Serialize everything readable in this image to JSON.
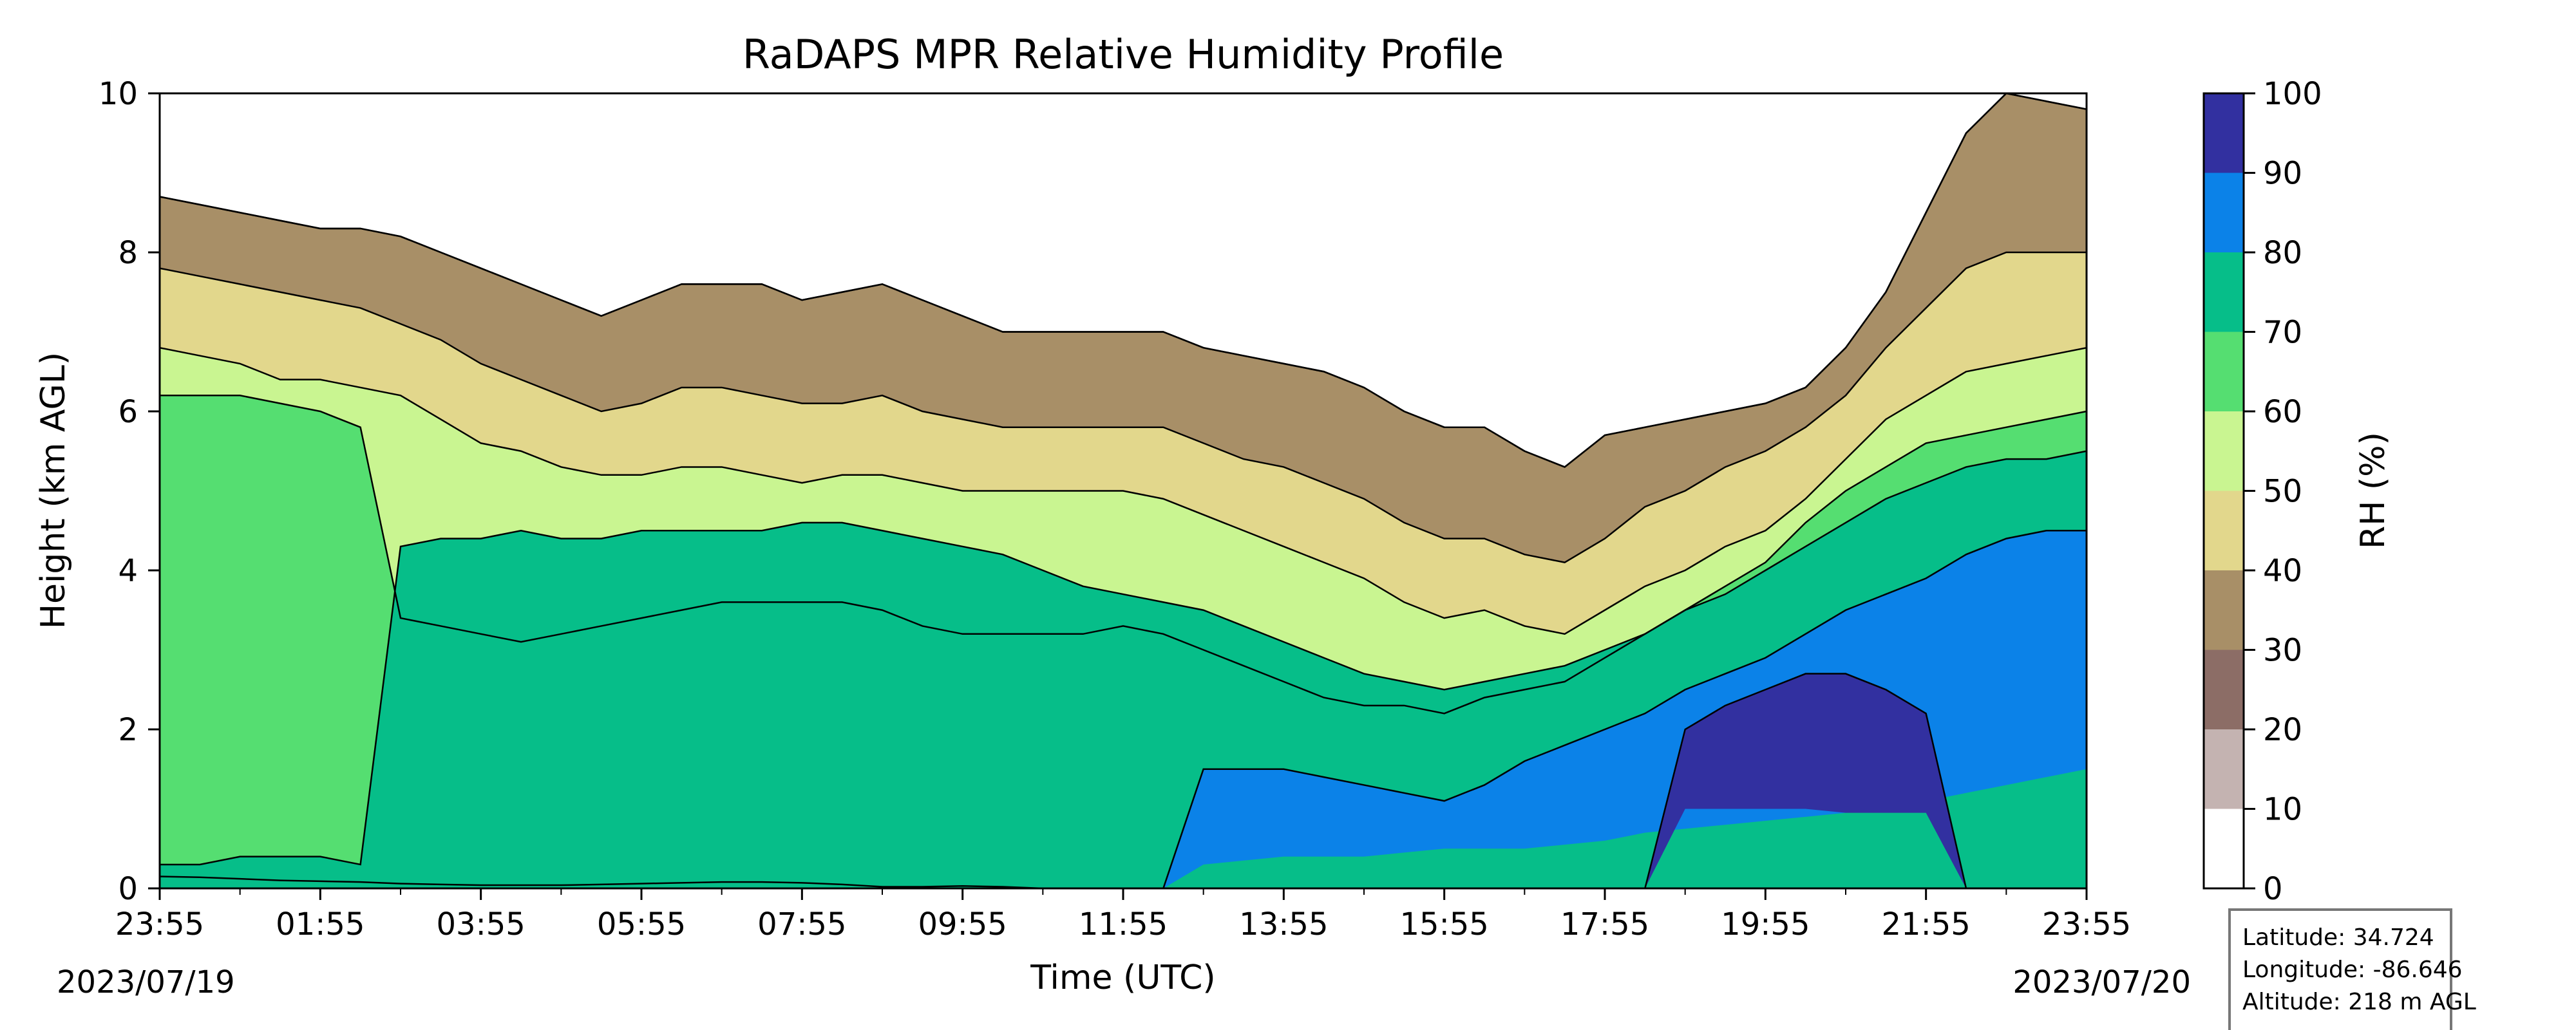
{
  "chart_data": {
    "type": "heatmap",
    "title": "RaDAPS MPR Relative Humidity Profile",
    "xlabel": "Time (UTC)",
    "ylabel": "Height (km AGL)",
    "x_ticks": [
      "23:55",
      "01:55",
      "03:55",
      "05:55",
      "07:55",
      "09:55",
      "11:55",
      "13:55",
      "15:55",
      "17:55",
      "19:55",
      "21:55",
      "23:55"
    ],
    "x_minor_ticks_per_interval": 1,
    "date_start": "2023/07/19",
    "date_end": "2023/07/20",
    "ylim": [
      0,
      10
    ],
    "y_ticks": [
      0,
      2,
      4,
      6,
      8,
      10
    ],
    "colorbar": {
      "label": "RH (%)",
      "levels": [
        0,
        10,
        20,
        30,
        40,
        50,
        60,
        70,
        80,
        90,
        100
      ],
      "colors": [
        "#ffffff",
        "#c4b3b1",
        "#8c6d66",
        "#a88f67",
        "#e2d78c",
        "#c9f591",
        "#55de71",
        "#06be89",
        "#0b82e8",
        "#3230a0"
      ]
    },
    "hours": [
      0,
      0.5,
      1,
      1.5,
      2,
      2.5,
      3,
      3.5,
      4,
      4.5,
      5,
      5.5,
      6,
      6.5,
      7,
      7.5,
      8,
      8.5,
      9,
      9.5,
      10,
      10.5,
      11,
      11.5,
      12,
      12.5,
      13,
      13.5,
      14,
      14.5,
      15,
      15.5,
      16,
      16.5,
      17,
      17.5,
      18,
      18.5,
      19,
      19.5,
      20,
      20.5,
      21,
      21.5,
      22,
      22.5,
      23,
      23.5,
      24
    ],
    "contour_heights_km": {
      "10": [
        0.15,
        0.14,
        0.12,
        0.1,
        0.09,
        0.08,
        0.06,
        0.05,
        0.04,
        0.04,
        0.04,
        0.05,
        0.06,
        0.07,
        0.08,
        0.08,
        0.07,
        0.05,
        0.02,
        0.02,
        0.03,
        0.02,
        0.0,
        0.0,
        0.0,
        0.0,
        0.0,
        0.0,
        0.0,
        0.0,
        0.0,
        0.0,
        0.0,
        0.0,
        0.0,
        0.0,
        0.0,
        0.0,
        0.0,
        0.0,
        0.0,
        0.0,
        0.0,
        0.0,
        0.0,
        0.0,
        0.0,
        0.0,
        0.0
      ],
      "20": [
        8.7,
        8.6,
        8.5,
        8.4,
        8.3,
        8.3,
        8.2,
        8.0,
        7.8,
        7.6,
        7.4,
        7.2,
        7.4,
        7.6,
        7.6,
        7.6,
        7.4,
        7.5,
        7.6,
        7.4,
        7.2,
        7.0,
        7.0,
        7.0,
        7.0,
        7.0,
        6.8,
        6.7,
        6.6,
        6.5,
        6.3,
        6.0,
        5.8,
        5.8,
        5.5,
        5.3,
        5.7,
        5.8,
        5.9,
        6.0,
        6.1,
        6.3,
        6.8,
        7.5,
        8.5,
        9.5,
        10.0,
        9.9,
        9.8
      ],
      "30": [
        8.7,
        8.6,
        8.5,
        8.4,
        8.3,
        8.3,
        8.2,
        8.0,
        7.8,
        7.6,
        7.4,
        7.2,
        7.4,
        7.6,
        7.6,
        7.6,
        7.4,
        7.5,
        7.6,
        7.4,
        7.2,
        7.0,
        7.0,
        7.0,
        7.0,
        7.0,
        6.8,
        6.7,
        6.6,
        6.5,
        6.3,
        6.0,
        5.8,
        5.8,
        5.5,
        5.3,
        5.7,
        5.8,
        5.9,
        6.0,
        6.1,
        6.3,
        6.8,
        7.5,
        8.5,
        9.5,
        10.0,
        9.9,
        9.8
      ],
      "40": [
        7.8,
        7.7,
        7.6,
        7.5,
        7.4,
        7.3,
        7.1,
        6.9,
        6.6,
        6.4,
        6.2,
        6.0,
        6.1,
        6.3,
        6.3,
        6.2,
        6.1,
        6.1,
        6.2,
        6.0,
        5.9,
        5.8,
        5.8,
        5.8,
        5.8,
        5.8,
        5.6,
        5.4,
        5.3,
        5.1,
        4.9,
        4.6,
        4.4,
        4.4,
        4.2,
        4.1,
        4.4,
        4.8,
        5.0,
        5.3,
        5.5,
        5.8,
        6.2,
        6.8,
        7.3,
        7.8,
        8.0,
        8.0,
        8.0
      ],
      "50": [
        6.8,
        6.7,
        6.6,
        6.4,
        6.4,
        6.3,
        6.2,
        5.9,
        5.6,
        5.5,
        5.3,
        5.2,
        5.2,
        5.3,
        5.3,
        5.2,
        5.1,
        5.2,
        5.2,
        5.1,
        5.0,
        5.0,
        5.0,
        5.0,
        5.0,
        4.9,
        4.7,
        4.5,
        4.3,
        4.1,
        3.9,
        3.6,
        3.4,
        3.5,
        3.3,
        3.2,
        3.5,
        3.8,
        4.0,
        4.3,
        4.5,
        4.9,
        5.4,
        5.9,
        6.2,
        6.5,
        6.6,
        6.7,
        6.8
      ],
      "60": [
        6.2,
        6.2,
        6.2,
        6.1,
        6.0,
        5.8,
        3.4,
        3.3,
        3.2,
        3.1,
        3.2,
        3.3,
        3.4,
        3.5,
        3.6,
        3.6,
        3.6,
        3.6,
        3.5,
        3.3,
        3.2,
        3.2,
        3.2,
        3.2,
        3.3,
        3.2,
        3.0,
        2.8,
        2.6,
        2.4,
        2.3,
        2.3,
        2.2,
        2.4,
        2.5,
        2.6,
        2.9,
        3.2,
        3.5,
        3.8,
        4.1,
        4.6,
        5.0,
        5.3,
        5.6,
        5.7,
        5.8,
        5.9,
        6.0
      ],
      "70": [
        0.3,
        0.3,
        0.4,
        0.4,
        0.4,
        0.3,
        4.3,
        4.4,
        4.4,
        4.5,
        4.4,
        4.4,
        4.5,
        4.5,
        4.5,
        4.5,
        4.6,
        4.6,
        4.5,
        4.4,
        4.3,
        4.2,
        4.0,
        3.8,
        3.7,
        3.6,
        3.5,
        3.3,
        3.1,
        2.9,
        2.7,
        2.6,
        2.5,
        2.6,
        2.7,
        2.8,
        3.0,
        3.2,
        3.5,
        3.7,
        4.0,
        4.3,
        4.6,
        4.9,
        5.1,
        5.3,
        5.4,
        5.4,
        5.5
      ],
      "80": [
        0.0,
        0.0,
        0.0,
        0.0,
        0.0,
        0.0,
        0.0,
        0.0,
        0.0,
        0.0,
        0.0,
        0.0,
        0.0,
        0.0,
        0.0,
        0.0,
        0.0,
        0.0,
        0.0,
        0.0,
        0.0,
        0.0,
        0.0,
        0.0,
        0.0,
        0.0,
        1.5,
        1.5,
        1.5,
        1.4,
        1.3,
        1.2,
        1.1,
        1.3,
        1.6,
        1.8,
        2.0,
        2.2,
        2.5,
        2.7,
        2.9,
        3.2,
        3.5,
        3.7,
        3.9,
        4.2,
        4.4,
        4.5,
        4.5
      ],
      "90": [
        0.0,
        0.0,
        0.0,
        0.0,
        0.0,
        0.0,
        0.0,
        0.0,
        0.0,
        0.0,
        0.0,
        0.0,
        0.0,
        0.0,
        0.0,
        0.0,
        0.0,
        0.0,
        0.0,
        0.0,
        0.0,
        0.0,
        0.0,
        0.0,
        0.0,
        0.0,
        0.0,
        0.0,
        0.0,
        0.0,
        0.0,
        0.0,
        0.0,
        0.0,
        0.0,
        0.0,
        0.0,
        0.0,
        2.0,
        2.3,
        2.5,
        2.7,
        2.7,
        2.5,
        2.2,
        0.0,
        0.0,
        0.0,
        0.0
      ]
    },
    "contour_floors_km": {
      "80": [
        0.0,
        0.0,
        0.0,
        0.0,
        0.0,
        0.0,
        0.0,
        0.0,
        0.0,
        0.0,
        0.0,
        0.0,
        0.0,
        0.0,
        0.0,
        0.0,
        0.0,
        0.0,
        0.0,
        0.0,
        0.0,
        0.0,
        0.0,
        0.0,
        0.0,
        0.0,
        0.3,
        0.35,
        0.4,
        0.4,
        0.4,
        0.45,
        0.5,
        0.5,
        0.5,
        0.55,
        0.6,
        0.7,
        0.75,
        0.8,
        0.85,
        0.9,
        0.95,
        1.0,
        1.1,
        1.2,
        1.3,
        1.4,
        1.5
      ],
      "90": [
        0.0,
        0.0,
        0.0,
        0.0,
        0.0,
        0.0,
        0.0,
        0.0,
        0.0,
        0.0,
        0.0,
        0.0,
        0.0,
        0.0,
        0.0,
        0.0,
        0.0,
        0.0,
        0.0,
        0.0,
        0.0,
        0.0,
        0.0,
        0.0,
        0.0,
        0.0,
        0.0,
        0.0,
        0.0,
        0.0,
        0.0,
        0.0,
        0.0,
        0.0,
        0.0,
        0.0,
        0.0,
        0.0,
        1.0,
        1.0,
        1.0,
        1.0,
        0.95,
        0.95,
        0.95,
        0.0,
        0.0,
        0.0,
        0.0
      ]
    },
    "info_box": {
      "latitude": "Latitude: 34.724",
      "longitude": "Longitude: -86.646",
      "altitude": "Altitude: 218 m AGL"
    }
  }
}
